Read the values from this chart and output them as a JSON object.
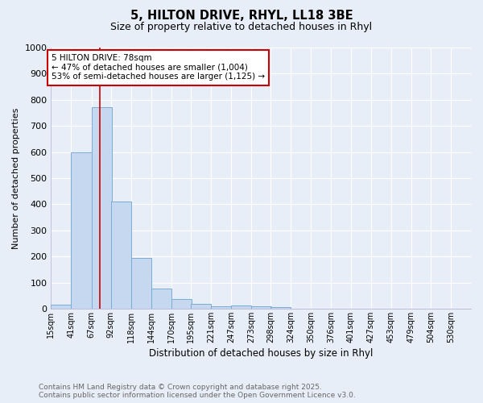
{
  "title1": "5, HILTON DRIVE, RHYL, LL18 3BE",
  "title2": "Size of property relative to detached houses in Rhyl",
  "xlabel": "Distribution of detached houses by size in Rhyl",
  "ylabel": "Number of detached properties",
  "bin_labels": [
    "15sqm",
    "41sqm",
    "67sqm",
    "92sqm",
    "118sqm",
    "144sqm",
    "170sqm",
    "195sqm",
    "221sqm",
    "247sqm",
    "273sqm",
    "298sqm",
    "324sqm",
    "350sqm",
    "376sqm",
    "401sqm",
    "427sqm",
    "453sqm",
    "479sqm",
    "504sqm",
    "530sqm"
  ],
  "bin_lefts": [
    15,
    41,
    67,
    92,
    118,
    144,
    170,
    195,
    221,
    247,
    273,
    298,
    324,
    350,
    376,
    401,
    427,
    453,
    479,
    504,
    530
  ],
  "bar_heights": [
    15,
    600,
    770,
    410,
    193,
    76,
    36,
    18,
    10,
    13,
    8,
    5,
    0,
    0,
    0,
    0,
    0,
    0,
    0,
    0,
    0
  ],
  "bar_color": "#c5d8f0",
  "bar_edge_color": "#7aadd4",
  "red_line_x": 78,
  "ylim": [
    0,
    1000
  ],
  "yticks": [
    0,
    100,
    200,
    300,
    400,
    500,
    600,
    700,
    800,
    900,
    1000
  ],
  "annotation_title": "5 HILTON DRIVE: 78sqm",
  "annotation_line1": "← 47% of detached houses are smaller (1,004)",
  "annotation_line2": "53% of semi-detached houses are larger (1,125) →",
  "annotation_box_facecolor": "#ffffff",
  "annotation_box_edgecolor": "#cc0000",
  "footer1": "Contains HM Land Registry data © Crown copyright and database right 2025.",
  "footer2": "Contains public sector information licensed under the Open Government Licence v3.0.",
  "bg_color": "#e8eef8",
  "grid_color": "#ffffff",
  "spine_color": "#aaaacc"
}
